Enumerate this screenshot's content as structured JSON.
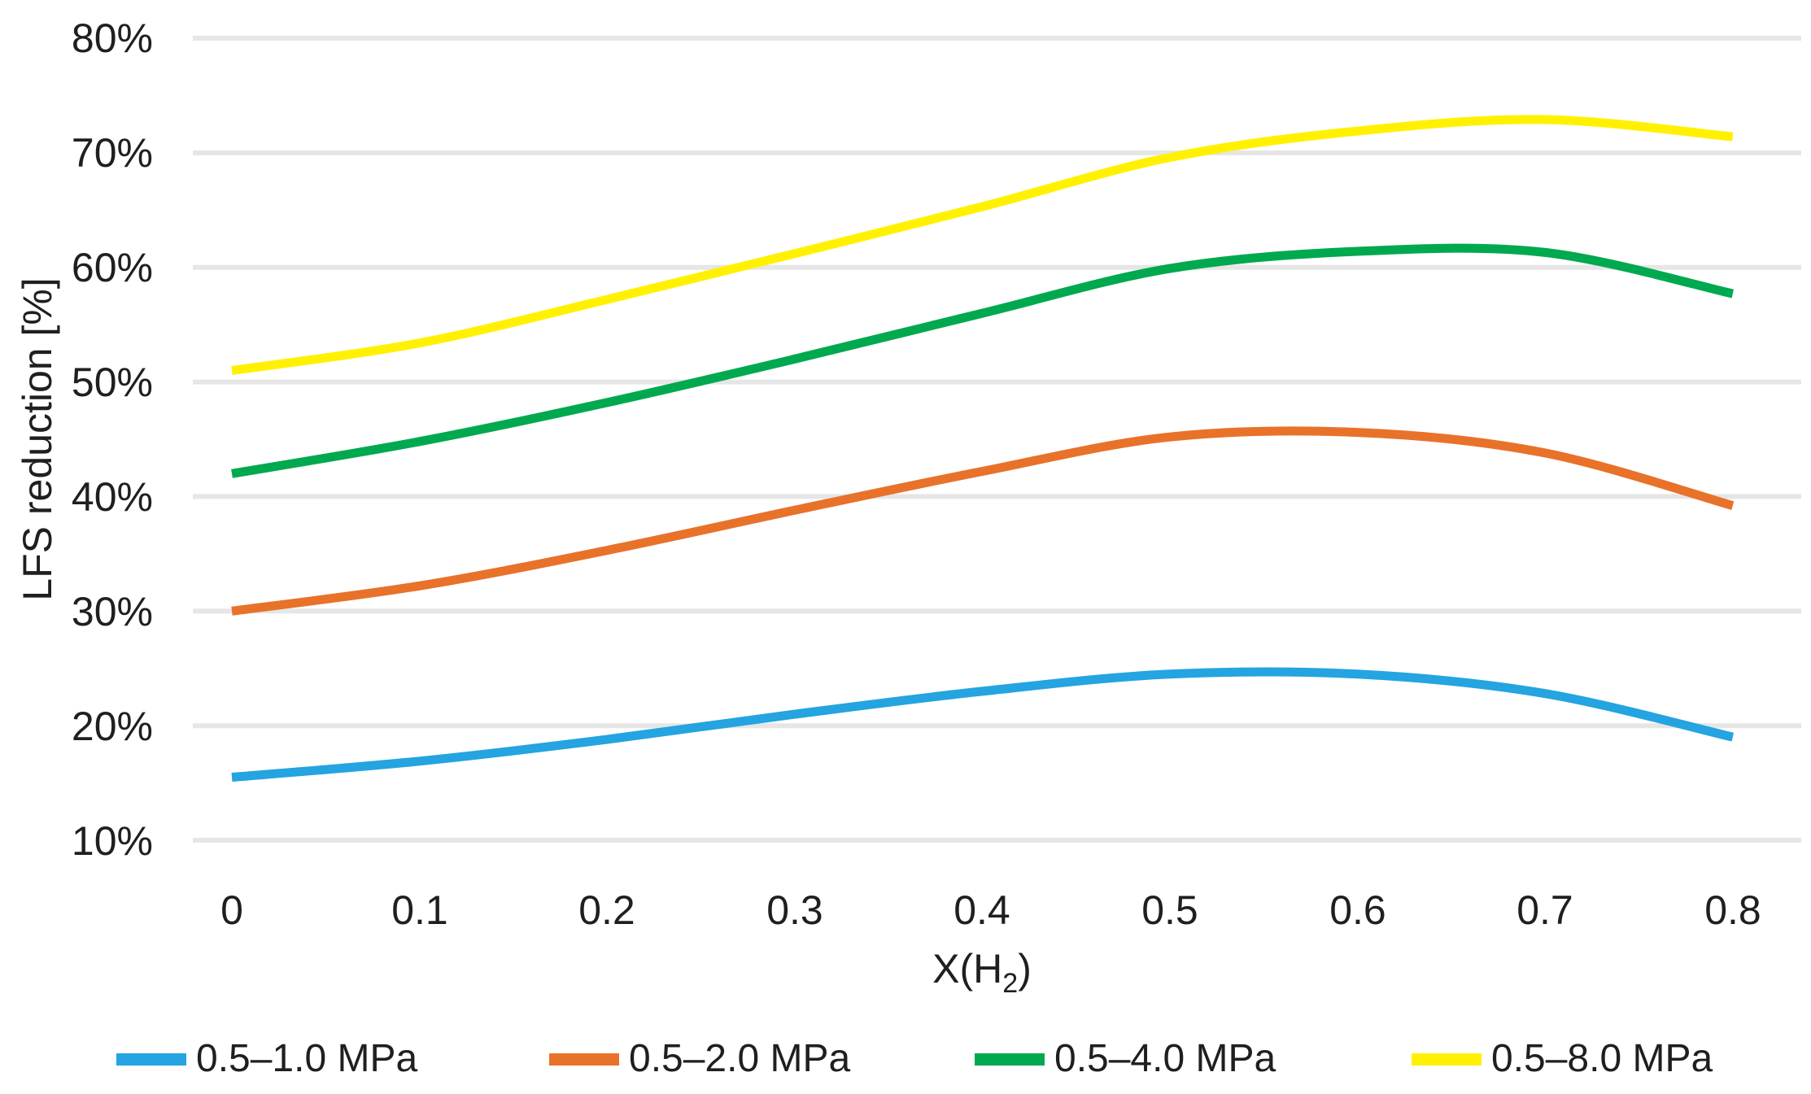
{
  "chart_data": {
    "type": "line",
    "title": "",
    "x": [
      0,
      0.1,
      0.2,
      0.3,
      0.4,
      0.5,
      0.6,
      0.7,
      0.8
    ],
    "series": [
      {
        "name": "0.5–1.0 MPa",
        "color": "#24A4E0",
        "values": [
          15.5,
          16.9,
          18.8,
          21.0,
          23.0,
          24.5,
          24.5,
          22.8,
          19.0
        ]
      },
      {
        "name": "0.5–2.0 MPa",
        "color": "#E8722A",
        "values": [
          30.0,
          32.2,
          35.3,
          38.8,
          42.2,
          45.2,
          45.6,
          43.8,
          39.2
        ]
      },
      {
        "name": "0.5–4.0 MPa",
        "color": "#00A94F",
        "values": [
          42.0,
          44.8,
          48.2,
          52.0,
          56.0,
          59.9,
          61.4,
          61.3,
          57.7
        ]
      },
      {
        "name": "0.5–8.0 MPa",
        "color": "#FFF101",
        "values": [
          51.0,
          53.4,
          57.2,
          61.2,
          65.3,
          69.6,
          71.9,
          72.9,
          71.4
        ]
      }
    ],
    "xaxis": {
      "title_prefix": "X(H",
      "title_sub": "2",
      "title_suffix": ")",
      "ticks": [
        "0",
        "0.1",
        "0.2",
        "0.3",
        "0.4",
        "0.5",
        "0.6",
        "0.7",
        "0.8"
      ]
    },
    "yaxis": {
      "title": "LFS reduction [%]",
      "ticks": [
        "80%",
        "70%",
        "60%",
        "50%",
        "40%",
        "30%",
        "20%",
        "10%"
      ],
      "range_percent": [
        10,
        80
      ]
    },
    "grid": "horizontal",
    "gridline_color": "#E6E6E6",
    "legend_position": "bottom",
    "background_color": "#FFFFFF",
    "text_color": "#1F1F1F"
  }
}
